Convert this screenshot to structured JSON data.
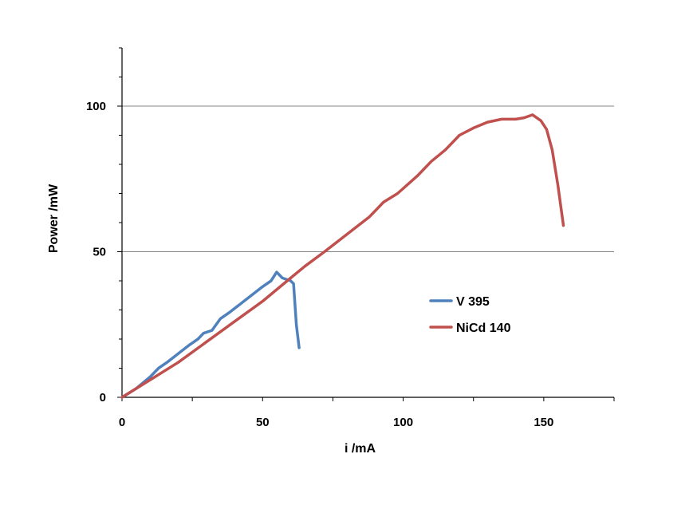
{
  "chart_data": {
    "type": "line",
    "title": "",
    "xlabel": "i /mA",
    "ylabel": "Power /mW",
    "xlim": [
      0,
      175
    ],
    "ylim": [
      0,
      120
    ],
    "x_ticks": [
      0,
      50,
      100,
      150
    ],
    "y_ticks": [
      0,
      50,
      100
    ],
    "x_minor_step": 25,
    "y_minor_step": 10,
    "grid": "horizontal-major",
    "legend_position": "right-center",
    "series": [
      {
        "name": "V 395",
        "color": "#4f81bd",
        "points": [
          [
            0,
            0
          ],
          [
            5,
            3
          ],
          [
            10,
            7
          ],
          [
            13,
            10
          ],
          [
            16,
            12
          ],
          [
            20,
            15
          ],
          [
            24,
            18
          ],
          [
            27,
            20
          ],
          [
            29,
            22
          ],
          [
            32,
            23
          ],
          [
            35,
            27
          ],
          [
            38,
            29
          ],
          [
            42,
            32
          ],
          [
            46,
            35
          ],
          [
            50,
            38
          ],
          [
            53,
            40
          ],
          [
            55,
            43
          ],
          [
            57,
            41
          ],
          [
            60,
            40
          ],
          [
            61,
            39
          ],
          [
            62,
            25
          ],
          [
            63,
            17
          ]
        ]
      },
      {
        "name": "NiCd 140",
        "color": "#c0504d",
        "points": [
          [
            0,
            0
          ],
          [
            10,
            6
          ],
          [
            20,
            12
          ],
          [
            30,
            19
          ],
          [
            40,
            26
          ],
          [
            50,
            33
          ],
          [
            60,
            41
          ],
          [
            65,
            45
          ],
          [
            72,
            50
          ],
          [
            80,
            56
          ],
          [
            88,
            62
          ],
          [
            93,
            67
          ],
          [
            98,
            70
          ],
          [
            105,
            76
          ],
          [
            110,
            81
          ],
          [
            115,
            85
          ],
          [
            120,
            90
          ],
          [
            125,
            92.5
          ],
          [
            130,
            94.5
          ],
          [
            135,
            95.5
          ],
          [
            140,
            95.5
          ],
          [
            143,
            96
          ],
          [
            146,
            97
          ],
          [
            149,
            95
          ],
          [
            151,
            92
          ],
          [
            153,
            85
          ],
          [
            155,
            73
          ],
          [
            157,
            59
          ]
        ]
      }
    ]
  }
}
